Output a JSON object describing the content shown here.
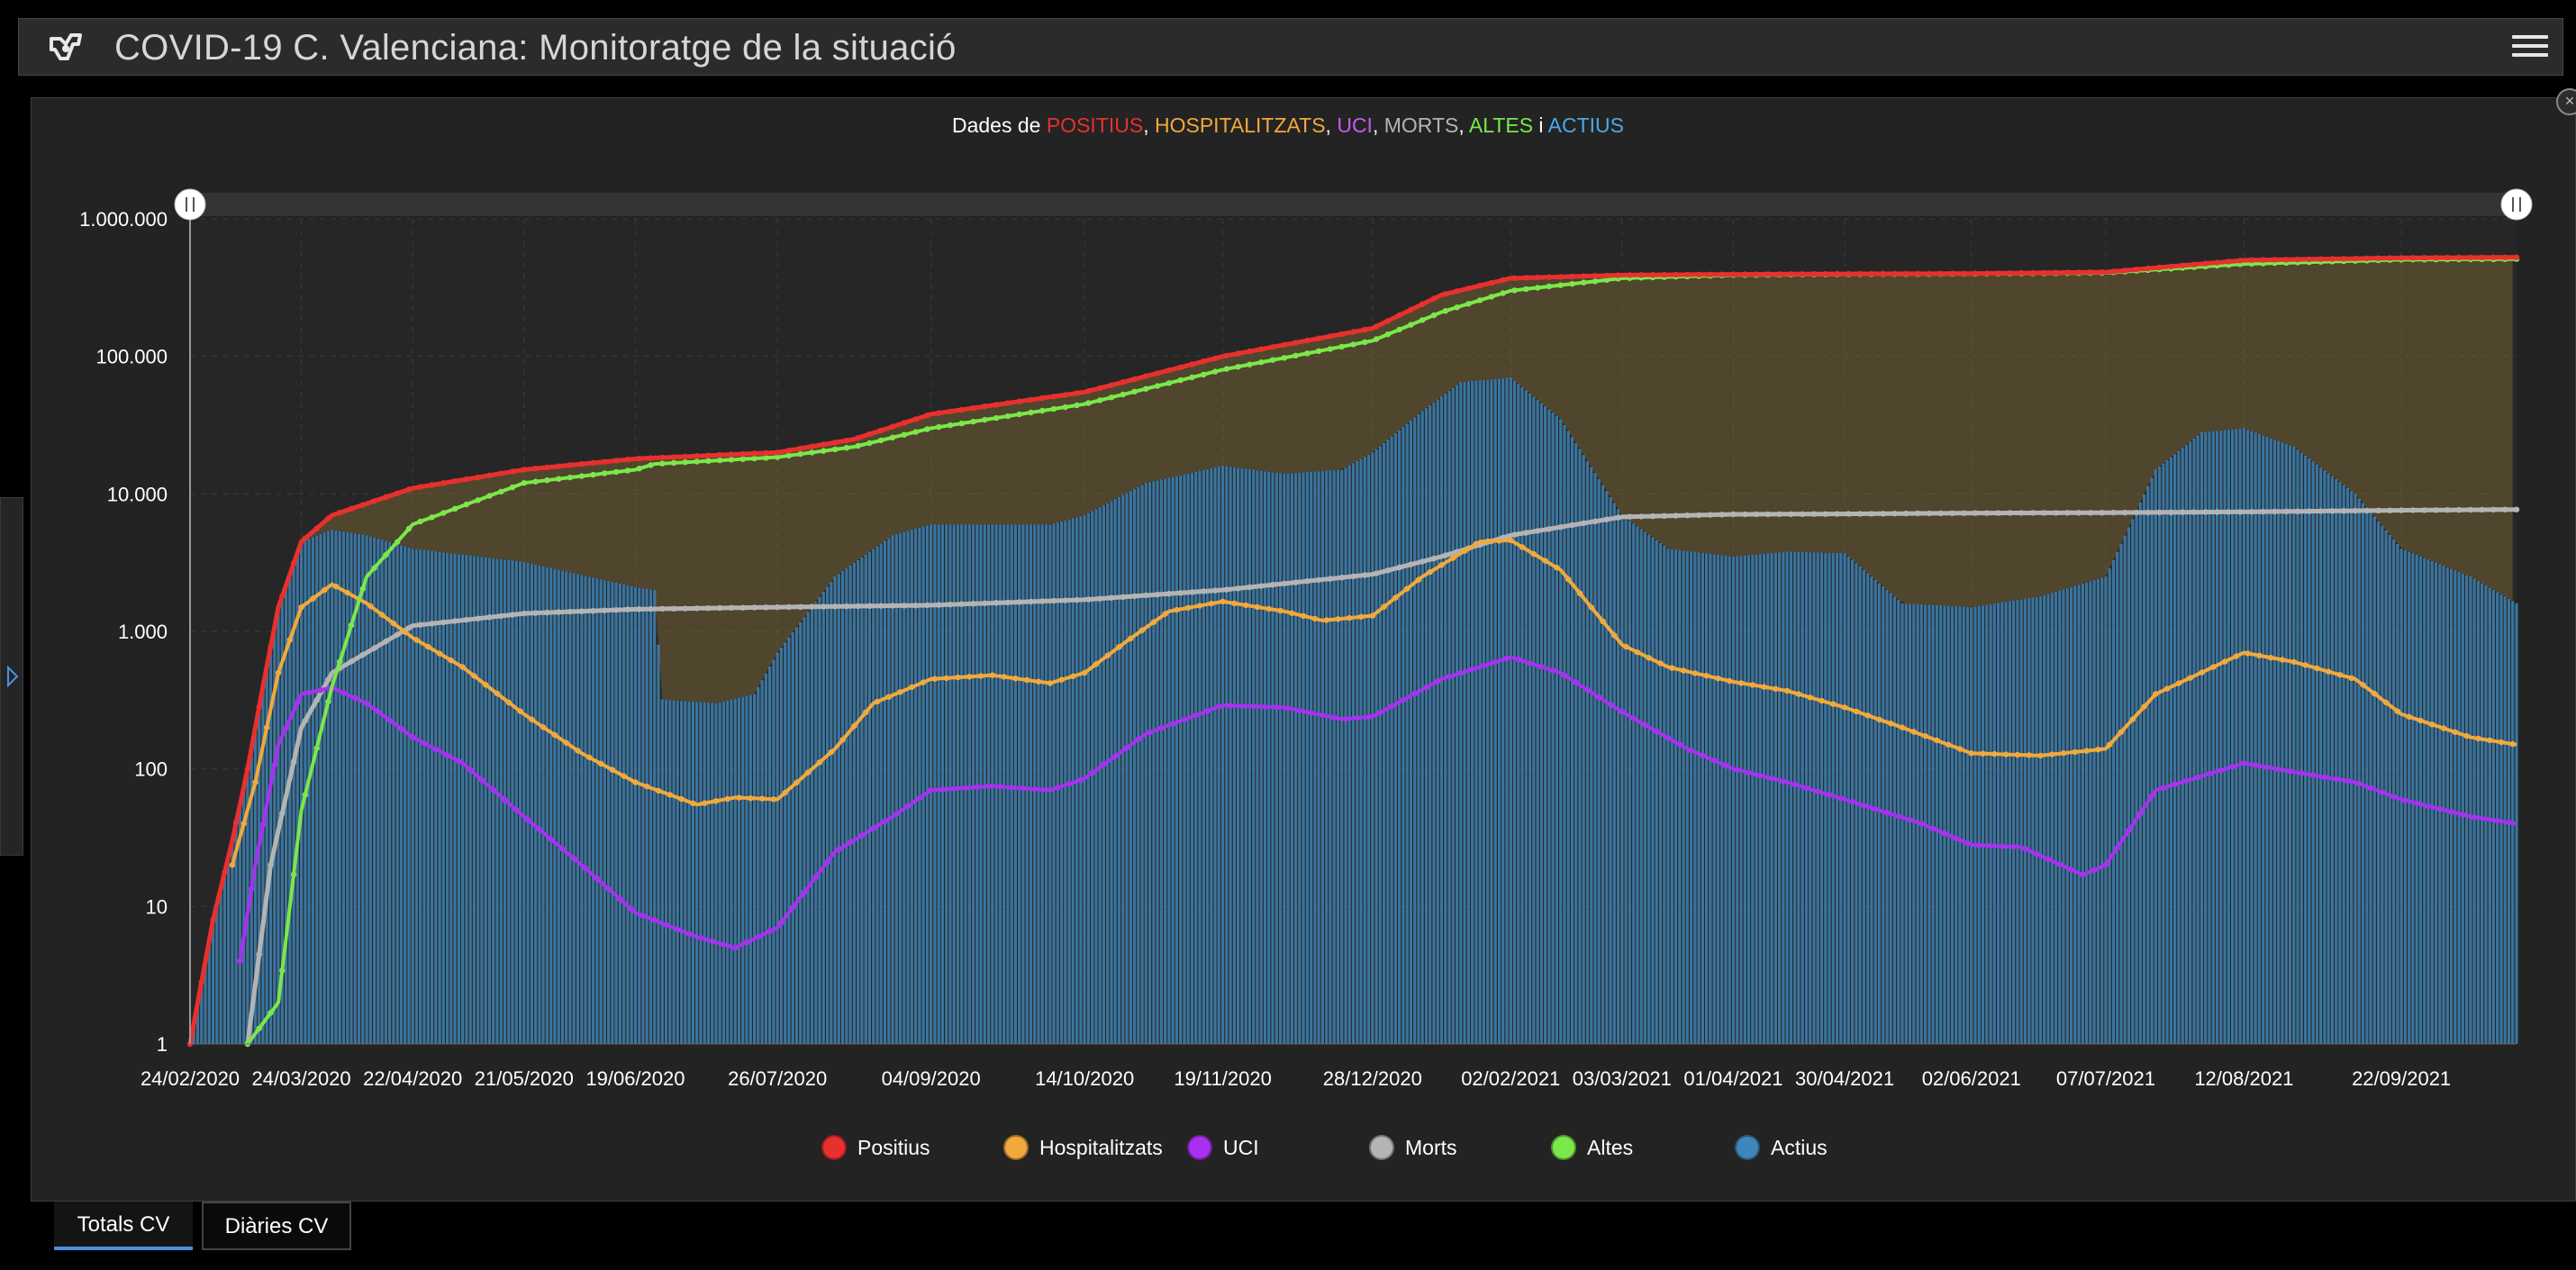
{
  "header": {
    "title": "COVID-19 C. Valenciana: Monitoratge de la situació"
  },
  "icons": {
    "logo": "bookmark-icon",
    "menu": "hamburger-menu-icon",
    "side": "expand-arrow-icon",
    "close": "close-icon"
  },
  "chart_title": {
    "prefix": "Dades de ",
    "positius": "POSITIUS",
    "hosp": "HOSPITALITZATS",
    "uci": "UCI",
    "morts": "MORTS",
    "altes": "ALTES",
    "actius": "ACTIUS",
    "sep": ", ",
    "and": " i "
  },
  "tabs": {
    "totals": "Totals CV",
    "diaries": "Diàries CV"
  },
  "chart_data": {
    "type": "line",
    "scale": "log",
    "ylim": [
      1,
      1000000
    ],
    "grid": true,
    "legend_position": "bottom",
    "yticks": [
      1,
      10,
      100,
      1000,
      10000,
      100000,
      1000000
    ],
    "ytick_labels": [
      "1",
      "10",
      "100",
      "1.000",
      "10.000",
      "100.000",
      "1.000.000"
    ],
    "xlim": [
      "2020-02-24",
      "2021-10-22"
    ],
    "xticks": [
      "2020-02-24",
      "2020-03-24",
      "2020-04-22",
      "2020-05-21",
      "2020-06-19",
      "2020-07-26",
      "2020-09-04",
      "2020-10-14",
      "2020-11-19",
      "2020-12-28",
      "2021-02-02",
      "2021-03-03",
      "2021-04-01",
      "2021-04-30",
      "2021-06-02",
      "2021-07-07",
      "2021-08-12",
      "2021-09-22"
    ],
    "xtick_labels": [
      "24/02/2020",
      "24/03/2020",
      "22/04/2020",
      "21/05/2020",
      "19/06/2020",
      "26/07/2020",
      "04/09/2020",
      "14/10/2020",
      "19/11/2020",
      "28/12/2020",
      "02/02/2021",
      "03/03/2021",
      "01/04/2021",
      "30/04/2021",
      "02/06/2021",
      "07/07/2021",
      "12/08/2021",
      "22/09/2021"
    ],
    "colors": {
      "positius": "#e8302e",
      "hosp": "#f2a93b",
      "uci": "#a830f0",
      "morts": "#b4b4b4",
      "altes": "#7be84a",
      "actius": "#3f86ba"
    },
    "series": [
      {
        "key": "positius",
        "name": "Positius",
        "points": [
          [
            "2020-02-24",
            1
          ],
          [
            "2020-03-01",
            8
          ],
          [
            "2020-03-06",
            30
          ],
          [
            "2020-03-10",
            100
          ],
          [
            "2020-03-14",
            400
          ],
          [
            "2020-03-18",
            1500
          ],
          [
            "2020-03-24",
            4500
          ],
          [
            "2020-04-01",
            7000
          ],
          [
            "2020-04-22",
            11000
          ],
          [
            "2020-05-21",
            15000
          ],
          [
            "2020-06-19",
            18000
          ],
          [
            "2020-07-26",
            20000
          ],
          [
            "2020-08-15",
            25000
          ],
          [
            "2020-09-04",
            38000
          ],
          [
            "2020-10-14",
            55000
          ],
          [
            "2020-11-19",
            100000
          ],
          [
            "2020-12-28",
            160000
          ],
          [
            "2021-01-15",
            280000
          ],
          [
            "2021-02-02",
            370000
          ],
          [
            "2021-03-03",
            390000
          ],
          [
            "2021-04-01",
            395000
          ],
          [
            "2021-04-30",
            398000
          ],
          [
            "2021-06-02",
            400000
          ],
          [
            "2021-07-07",
            410000
          ],
          [
            "2021-08-12",
            500000
          ],
          [
            "2021-09-22",
            520000
          ],
          [
            "2021-10-22",
            525000
          ]
        ]
      },
      {
        "key": "altes",
        "name": "Altes",
        "points": [
          [
            "2020-03-10",
            1
          ],
          [
            "2020-03-18",
            2
          ],
          [
            "2020-03-24",
            50
          ],
          [
            "2020-04-01",
            400
          ],
          [
            "2020-04-10",
            2500
          ],
          [
            "2020-04-22",
            6000
          ],
          [
            "2020-05-21",
            12000
          ],
          [
            "2020-06-19",
            15000
          ],
          [
            "2020-06-24",
            16500
          ],
          [
            "2020-07-26",
            18500
          ],
          [
            "2020-08-15",
            22000
          ],
          [
            "2020-09-04",
            30000
          ],
          [
            "2020-10-14",
            45000
          ],
          [
            "2020-11-19",
            80000
          ],
          [
            "2020-12-28",
            130000
          ],
          [
            "2021-01-15",
            210000
          ],
          [
            "2021-02-02",
            300000
          ],
          [
            "2021-03-03",
            370000
          ],
          [
            "2021-04-01",
            390000
          ],
          [
            "2021-04-30",
            395000
          ],
          [
            "2021-06-02",
            398000
          ],
          [
            "2021-07-07",
            405000
          ],
          [
            "2021-08-12",
            470000
          ],
          [
            "2021-09-22",
            505000
          ],
          [
            "2021-10-22",
            510000
          ]
        ]
      },
      {
        "key": "morts",
        "name": "Morts",
        "points": [
          [
            "2020-03-10",
            1
          ],
          [
            "2020-03-16",
            20
          ],
          [
            "2020-03-24",
            200
          ],
          [
            "2020-04-01",
            500
          ],
          [
            "2020-04-22",
            1100
          ],
          [
            "2020-05-21",
            1350
          ],
          [
            "2020-06-19",
            1450
          ],
          [
            "2020-07-26",
            1500
          ],
          [
            "2020-09-04",
            1550
          ],
          [
            "2020-10-14",
            1700
          ],
          [
            "2020-11-19",
            2000
          ],
          [
            "2020-12-28",
            2600
          ],
          [
            "2021-01-15",
            3500
          ],
          [
            "2021-02-02",
            5000
          ],
          [
            "2021-03-03",
            6800
          ],
          [
            "2021-04-01",
            7100
          ],
          [
            "2021-04-30",
            7150
          ],
          [
            "2021-06-02",
            7250
          ],
          [
            "2021-07-07",
            7300
          ],
          [
            "2021-08-12",
            7400
          ],
          [
            "2021-09-22",
            7600
          ],
          [
            "2021-10-22",
            7700
          ]
        ]
      },
      {
        "key": "hosp",
        "name": "Hospitalitzats",
        "points": [
          [
            "2020-03-06",
            20
          ],
          [
            "2020-03-12",
            80
          ],
          [
            "2020-03-18",
            500
          ],
          [
            "2020-03-24",
            1500
          ],
          [
            "2020-04-01",
            2200
          ],
          [
            "2020-04-10",
            1600
          ],
          [
            "2020-04-22",
            900
          ],
          [
            "2020-05-05",
            550
          ],
          [
            "2020-05-21",
            250
          ],
          [
            "2020-06-05",
            130
          ],
          [
            "2020-06-19",
            80
          ],
          [
            "2020-07-05",
            55
          ],
          [
            "2020-07-15",
            62
          ],
          [
            "2020-07-26",
            60
          ],
          [
            "2020-08-10",
            140
          ],
          [
            "2020-08-20",
            300
          ],
          [
            "2020-09-04",
            450
          ],
          [
            "2020-09-20",
            480
          ],
          [
            "2020-10-05",
            420
          ],
          [
            "2020-10-14",
            500
          ],
          [
            "2020-10-25",
            850
          ],
          [
            "2020-11-05",
            1400
          ],
          [
            "2020-11-19",
            1650
          ],
          [
            "2020-12-05",
            1400
          ],
          [
            "2020-12-15",
            1200
          ],
          [
            "2020-12-28",
            1300
          ],
          [
            "2021-01-10",
            2500
          ],
          [
            "2021-01-25",
            4500
          ],
          [
            "2021-02-02",
            4600
          ],
          [
            "2021-02-15",
            2800
          ],
          [
            "2021-03-03",
            800
          ],
          [
            "2021-03-15",
            550
          ],
          [
            "2021-04-01",
            430
          ],
          [
            "2021-04-15",
            370
          ],
          [
            "2021-04-30",
            280
          ],
          [
            "2021-05-15",
            200
          ],
          [
            "2021-06-02",
            130
          ],
          [
            "2021-06-20",
            125
          ],
          [
            "2021-07-07",
            140
          ],
          [
            "2021-07-20",
            350
          ],
          [
            "2021-08-12",
            700
          ],
          [
            "2021-08-25",
            600
          ],
          [
            "2021-09-10",
            450
          ],
          [
            "2021-09-22",
            250
          ],
          [
            "2021-10-10",
            170
          ],
          [
            "2021-10-22",
            150
          ]
        ]
      },
      {
        "key": "uci",
        "name": "UCI",
        "points": [
          [
            "2020-03-08",
            4
          ],
          [
            "2020-03-12",
            20
          ],
          [
            "2020-03-18",
            150
          ],
          [
            "2020-03-24",
            350
          ],
          [
            "2020-04-01",
            390
          ],
          [
            "2020-04-10",
            300
          ],
          [
            "2020-04-22",
            170
          ],
          [
            "2020-05-05",
            110
          ],
          [
            "2020-05-21",
            45
          ],
          [
            "2020-06-05",
            20
          ],
          [
            "2020-06-19",
            9
          ],
          [
            "2020-07-05",
            6
          ],
          [
            "2020-07-15",
            5
          ],
          [
            "2020-07-26",
            7
          ],
          [
            "2020-08-10",
            25
          ],
          [
            "2020-08-25",
            45
          ],
          [
            "2020-09-04",
            70
          ],
          [
            "2020-09-20",
            75
          ],
          [
            "2020-10-05",
            70
          ],
          [
            "2020-10-14",
            85
          ],
          [
            "2020-10-30",
            180
          ],
          [
            "2020-11-19",
            290
          ],
          [
            "2020-12-05",
            280
          ],
          [
            "2020-12-20",
            230
          ],
          [
            "2020-12-28",
            240
          ],
          [
            "2021-01-15",
            450
          ],
          [
            "2021-02-02",
            650
          ],
          [
            "2021-02-15",
            500
          ],
          [
            "2021-03-03",
            260
          ],
          [
            "2021-03-20",
            140
          ],
          [
            "2021-04-01",
            100
          ],
          [
            "2021-04-15",
            80
          ],
          [
            "2021-04-30",
            60
          ],
          [
            "2021-05-20",
            40
          ],
          [
            "2021-06-02",
            28
          ],
          [
            "2021-06-15",
            27
          ],
          [
            "2021-07-01",
            17
          ],
          [
            "2021-07-07",
            20
          ],
          [
            "2021-07-20",
            70
          ],
          [
            "2021-08-12",
            110
          ],
          [
            "2021-08-25",
            95
          ],
          [
            "2021-09-10",
            80
          ],
          [
            "2021-09-22",
            60
          ],
          [
            "2021-10-10",
            45
          ],
          [
            "2021-10-22",
            40
          ]
        ]
      },
      {
        "key": "actius",
        "name": "Actius",
        "points": [
          [
            "2020-02-24",
            1
          ],
          [
            "2020-03-01",
            8
          ],
          [
            "2020-03-06",
            30
          ],
          [
            "2020-03-10",
            100
          ],
          [
            "2020-03-14",
            400
          ],
          [
            "2020-03-18",
            1500
          ],
          [
            "2020-03-24",
            4500
          ],
          [
            "2020-04-01",
            5500
          ],
          [
            "2020-04-10",
            5000
          ],
          [
            "2020-04-22",
            4000
          ],
          [
            "2020-05-21",
            3200
          ],
          [
            "2020-06-19",
            2100
          ],
          [
            "2020-06-24",
            2000
          ],
          [
            "2020-06-26",
            320
          ],
          [
            "2020-07-10",
            300
          ],
          [
            "2020-07-20",
            350
          ],
          [
            "2020-07-26",
            700
          ],
          [
            "2020-08-10",
            2500
          ],
          [
            "2020-08-25",
            5000
          ],
          [
            "2020-09-04",
            6000
          ],
          [
            "2020-10-05",
            6000
          ],
          [
            "2020-10-14",
            7000
          ],
          [
            "2020-10-30",
            12000
          ],
          [
            "2020-11-19",
            16000
          ],
          [
            "2020-12-05",
            14000
          ],
          [
            "2020-12-20",
            15000
          ],
          [
            "2020-12-28",
            20000
          ],
          [
            "2021-01-10",
            40000
          ],
          [
            "2021-01-20",
            65000
          ],
          [
            "2021-02-02",
            70000
          ],
          [
            "2021-02-15",
            35000
          ],
          [
            "2021-03-03",
            7000
          ],
          [
            "2021-03-15",
            4000
          ],
          [
            "2021-04-01",
            3500
          ],
          [
            "2021-04-15",
            3800
          ],
          [
            "2021-04-30",
            3700
          ],
          [
            "2021-05-15",
            1600
          ],
          [
            "2021-06-02",
            1500
          ],
          [
            "2021-06-20",
            1800
          ],
          [
            "2021-07-07",
            2500
          ],
          [
            "2021-07-20",
            15000
          ],
          [
            "2021-08-01",
            28000
          ],
          [
            "2021-08-12",
            30000
          ],
          [
            "2021-08-25",
            22000
          ],
          [
            "2021-09-10",
            10000
          ],
          [
            "2021-09-22",
            4000
          ],
          [
            "2021-10-10",
            2500
          ],
          [
            "2021-10-22",
            1600
          ]
        ]
      }
    ]
  }
}
